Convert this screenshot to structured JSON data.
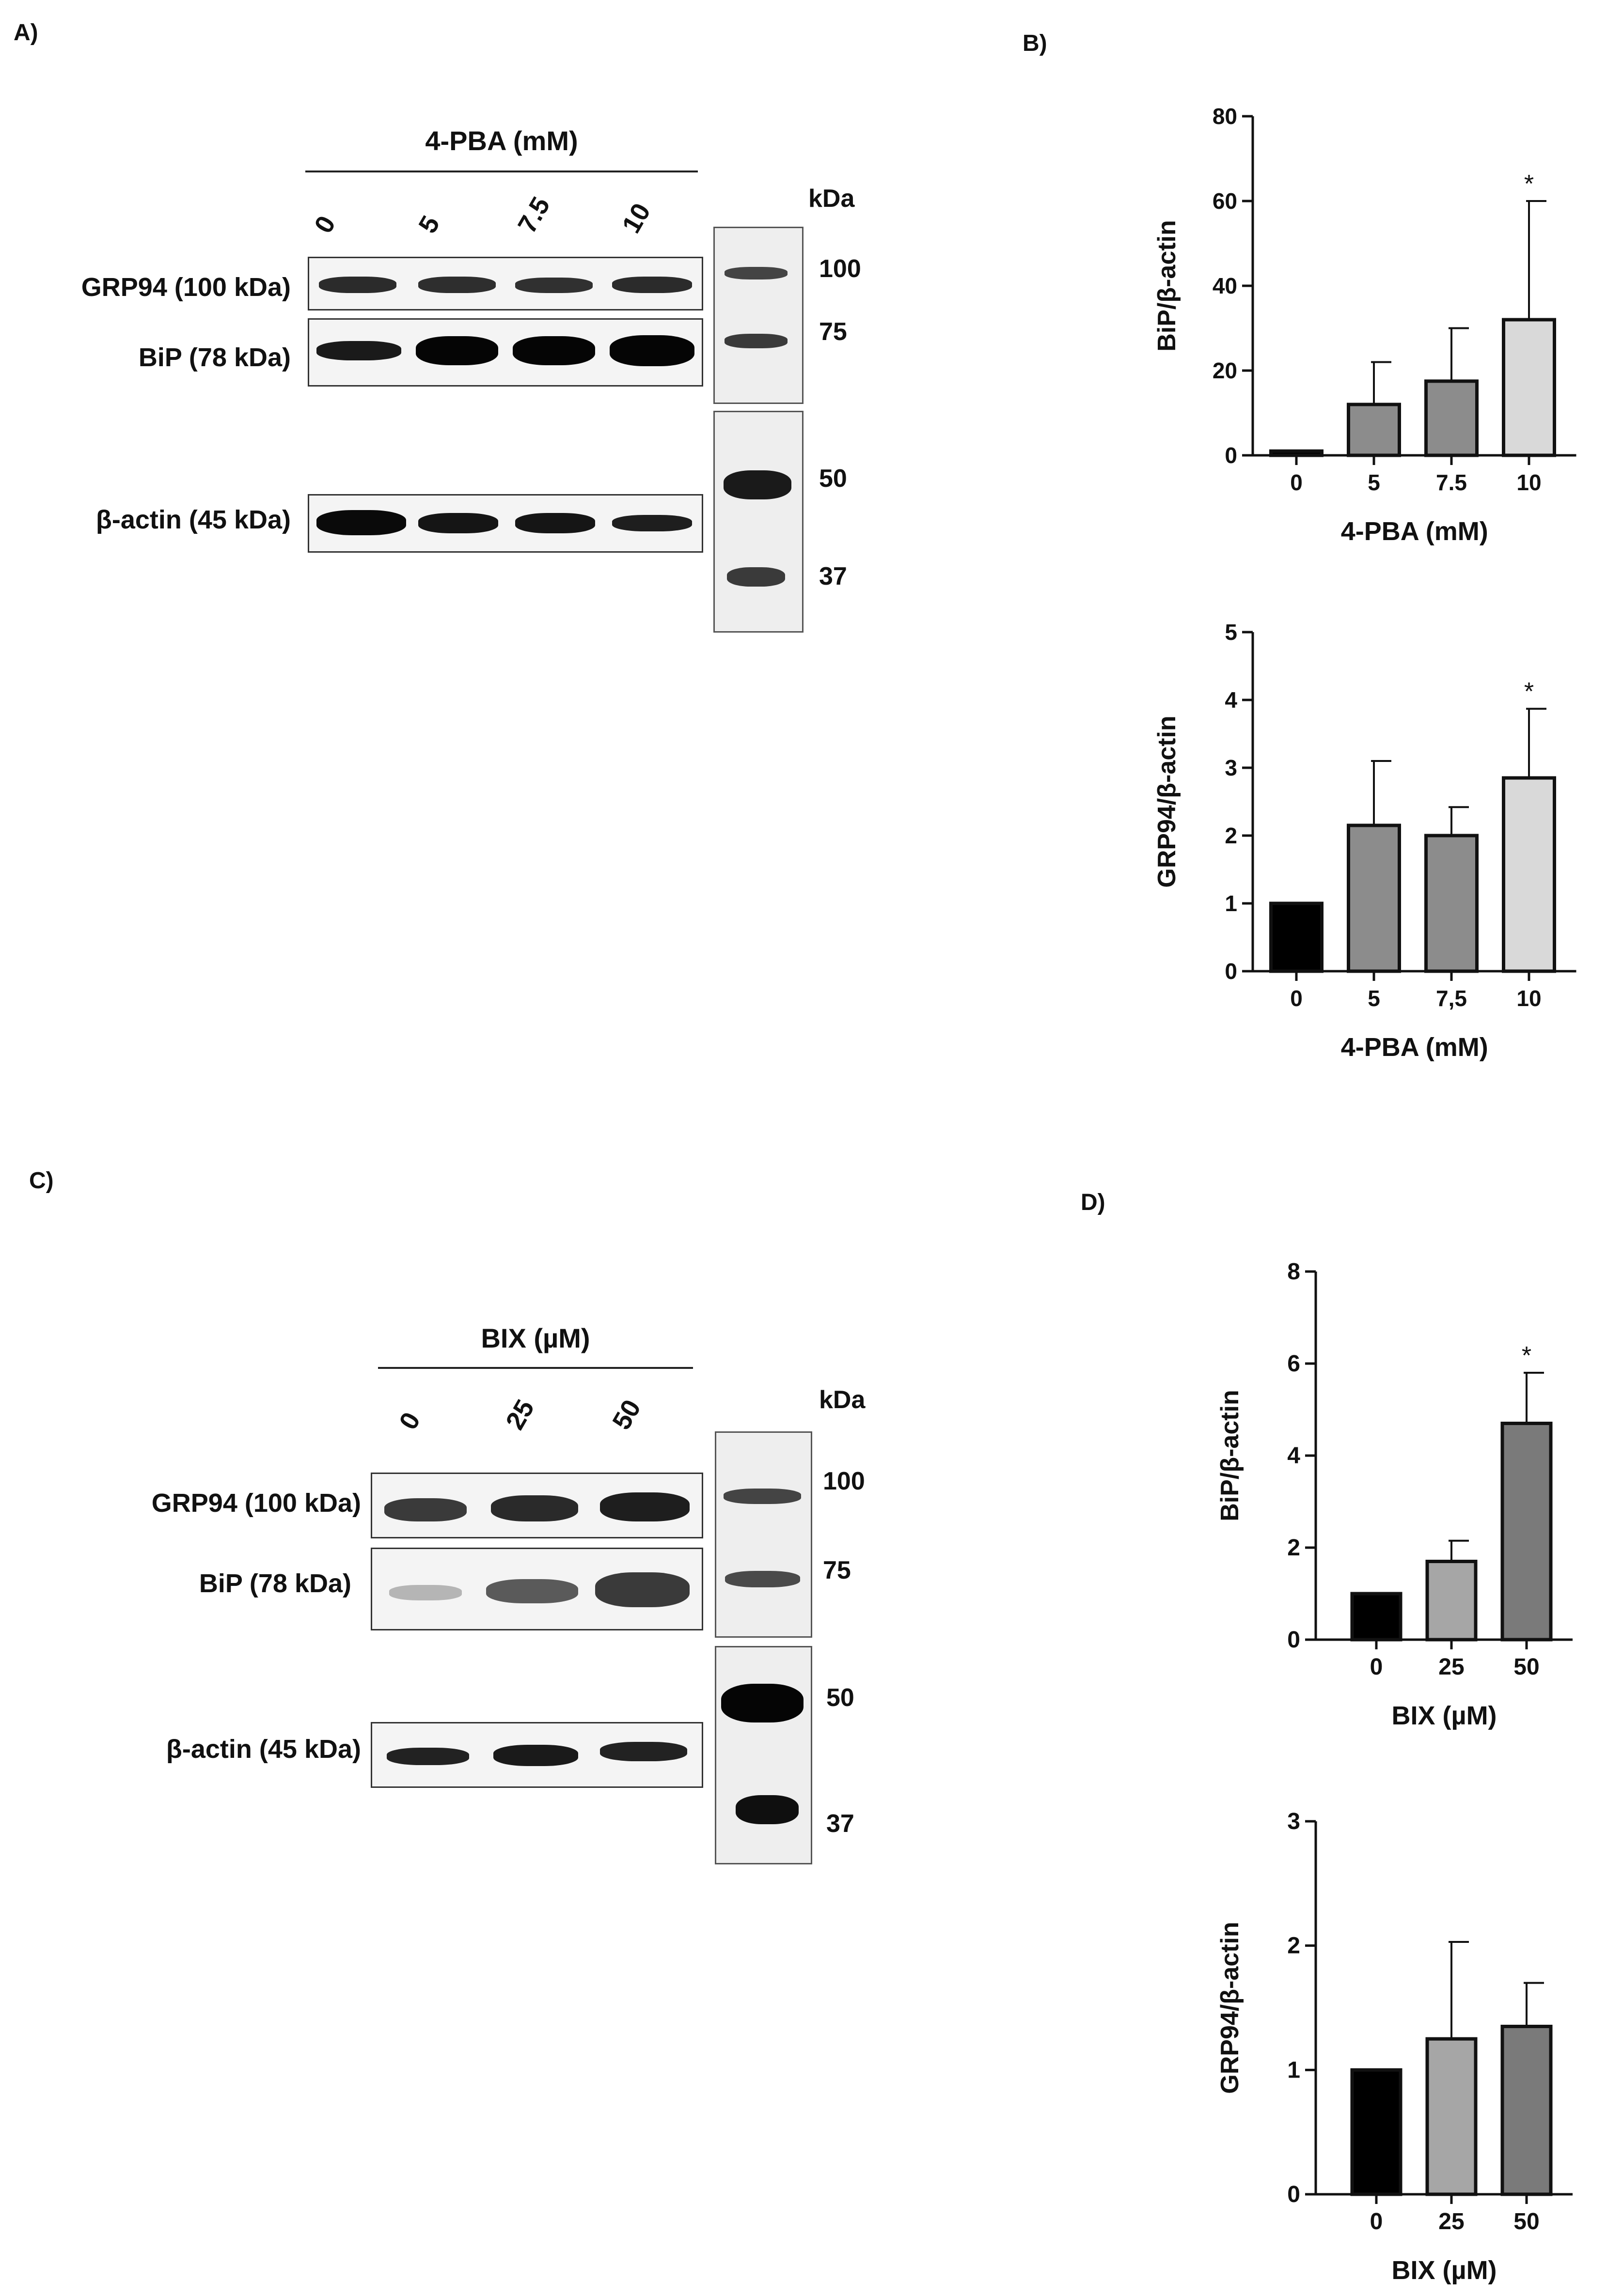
{
  "panels": {
    "A": {
      "letter": "A)",
      "treatment": "4-PBA (mM)",
      "lanes": [
        "0",
        "5",
        "7.5",
        "10"
      ],
      "kda": "kDa",
      "rows": [
        "GRP94 (100 kDa)",
        "BiP (78 kDa)",
        "β-actin (45 kDa)"
      ],
      "markers_top": [
        "100",
        "75"
      ],
      "markers_bottom": [
        "50",
        "37"
      ]
    },
    "B": {
      "letter": "B)"
    },
    "C": {
      "letter": "C)",
      "treatment": "BIX (µM)",
      "lanes": [
        "0",
        "25",
        "50"
      ],
      "kda": "kDa",
      "rows": [
        "GRP94 (100 kDa)",
        "BiP (78 kDa)",
        "β-actin (45 kDa)"
      ],
      "markers_top": [
        "100",
        "75"
      ],
      "markers_bottom": [
        "50",
        "37"
      ]
    },
    "D": {
      "letter": "D)"
    }
  },
  "chart_data": [
    {
      "type": "bar",
      "panel": "B",
      "categories": [
        "0",
        "5",
        "7.5",
        "10"
      ],
      "values": [
        1,
        12,
        17.5,
        32
      ],
      "errors": [
        0,
        10,
        12.5,
        28
      ],
      "significance": [
        "",
        "",
        "",
        "*"
      ],
      "xlabel": "4-PBA (mM)",
      "ylabel": "BiP/β-actin",
      "ylim": [
        0,
        80
      ],
      "yticks": [
        "0",
        "20",
        "40",
        "60",
        "80"
      ],
      "colors": [
        "#000000",
        "#8c8c8c",
        "#8c8c8c",
        "#d9d9d9"
      ]
    },
    {
      "type": "bar",
      "panel": "B",
      "categories": [
        "0",
        "5",
        "7,5",
        "10"
      ],
      "values": [
        1,
        2.15,
        2.0,
        2.85
      ],
      "errors": [
        0,
        0.95,
        0.42,
        1.02
      ],
      "significance": [
        "",
        "",
        "",
        "*"
      ],
      "xlabel": "4-PBA (mM)",
      "ylabel": "GRP94/β-actin",
      "ylim": [
        0,
        5
      ],
      "yticks": [
        "0",
        "1",
        "2",
        "3",
        "4",
        "5"
      ],
      "colors": [
        "#000000",
        "#8c8c8c",
        "#8c8c8c",
        "#d9d9d9"
      ]
    },
    {
      "type": "bar",
      "panel": "D",
      "categories": [
        "0",
        "25",
        "50"
      ],
      "values": [
        1,
        1.7,
        4.7
      ],
      "errors": [
        0,
        0.45,
        1.1
      ],
      "significance": [
        "",
        "",
        "*"
      ],
      "xlabel": "BIX (µM)",
      "ylabel": "BiP/β-actin",
      "ylim": [
        0,
        8
      ],
      "yticks": [
        "0",
        "2",
        "4",
        "6",
        "8"
      ],
      "colors": [
        "#000000",
        "#a6a6a6",
        "#7a7a7a"
      ]
    },
    {
      "type": "bar",
      "panel": "D",
      "categories": [
        "0",
        "25",
        "50"
      ],
      "values": [
        1,
        1.25,
        1.35
      ],
      "errors": [
        0,
        0.78,
        0.35
      ],
      "significance": [
        "",
        "",
        ""
      ],
      "xlabel": "BIX (µM)",
      "ylabel": "GRP94/β-actin",
      "ylim": [
        0,
        3
      ],
      "yticks": [
        "0",
        "1",
        "2",
        "3"
      ],
      "colors": [
        "#000000",
        "#a6a6a6",
        "#7a7a7a"
      ]
    }
  ]
}
